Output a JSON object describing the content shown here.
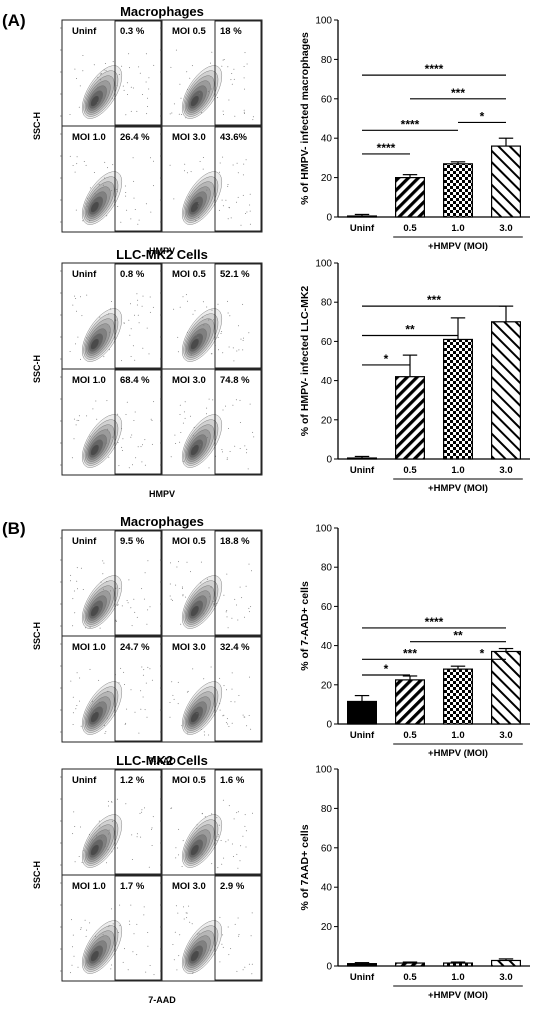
{
  "sections": [
    {
      "label": "(A)",
      "panels": [
        {
          "title": "Macrophages",
          "y_axis_label": "SSC-H",
          "x_axis_label": "HMPV",
          "quadrants": [
            {
              "condition": "Uninf",
              "percent": "0.3 %"
            },
            {
              "condition": "MOI 0.5",
              "percent": "18 %"
            },
            {
              "condition": "MOI 1.0",
              "percent": "26.4 %"
            },
            {
              "condition": "MOI 3.0",
              "percent": "43.6%"
            }
          ]
        },
        {
          "title": "LLC-MK2 Cells",
          "y_axis_label": "SSC-H",
          "x_axis_label": "HMPV",
          "quadrants": [
            {
              "condition": "Uninf",
              "percent": "0.8 %"
            },
            {
              "condition": "MOI 0.5",
              "percent": "52.1 %"
            },
            {
              "condition": "MOI 1.0",
              "percent": "68.4 %"
            },
            {
              "condition": "MOI 3.0",
              "percent": "74.8 %"
            }
          ]
        }
      ]
    },
    {
      "label": "(B)",
      "panels": [
        {
          "title": "Macrophages",
          "y_axis_label": "SSC-H",
          "x_axis_label": "7-AAD",
          "quadrants": [
            {
              "condition": "Uninf",
              "percent": "9.5 %"
            },
            {
              "condition": "MOI 0.5",
              "percent": "18.8 %"
            },
            {
              "condition": "MOI 1.0",
              "percent": "24.7 %"
            },
            {
              "condition": "MOI 3.0",
              "percent": "32.4 %"
            }
          ]
        },
        {
          "title": "LLC-MK2 Cells",
          "y_axis_label": "SSC-H",
          "x_axis_label": "7-AAD",
          "quadrants": [
            {
              "condition": "Uninf",
              "percent": "1.2 %"
            },
            {
              "condition": "MOI 0.5",
              "percent": "1.6 %"
            },
            {
              "condition": "MOI 1.0",
              "percent": "1.7 %"
            },
            {
              "condition": "MOI 3.0",
              "percent": "2.9 %"
            }
          ]
        }
      ]
    }
  ],
  "chart_data": [
    {
      "type": "bar",
      "categories": [
        "Uninf",
        "0.5",
        "1.0",
        "3.0"
      ],
      "group_label": "+HMPV (MOI)",
      "ylabel": "% of HMPV- infected macrophages",
      "ylim": [
        0,
        100
      ],
      "yticks": [
        "0",
        "20",
        "40",
        "60",
        "80",
        "100"
      ],
      "values": [
        0.5,
        20,
        27,
        36
      ],
      "errors": [
        0.8,
        1.5,
        1,
        4
      ],
      "fills": [
        "solid",
        "diagonal",
        "checker",
        "diagonal-wide"
      ],
      "significance": [
        {
          "from": 0,
          "to": 3,
          "label": "****"
        },
        {
          "from": 1,
          "to": 3,
          "label": "***"
        },
        {
          "from": 0,
          "to": 2,
          "label": "****"
        },
        {
          "from": 2,
          "to": 3,
          "label": "*"
        },
        {
          "from": 0,
          "to": 1,
          "label": "****"
        }
      ]
    },
    {
      "type": "bar",
      "categories": [
        "Uninf",
        "0.5",
        "1.0",
        "3.0"
      ],
      "group_label": "+HMPV (MOI)",
      "ylabel": "% of HMPV- infected LLC-MK2",
      "ylim": [
        0,
        100
      ],
      "yticks": [
        "0",
        "20",
        "40",
        "60",
        "80",
        "100"
      ],
      "values": [
        0.5,
        42,
        61,
        70
      ],
      "errors": [
        0.8,
        11,
        11,
        8
      ],
      "fills": [
        "solid",
        "diagonal",
        "checker",
        "diagonal-wide"
      ],
      "significance": [
        {
          "from": 0,
          "to": 3,
          "label": "***"
        },
        {
          "from": 0,
          "to": 2,
          "label": "**"
        },
        {
          "from": 0,
          "to": 1,
          "label": "*"
        }
      ]
    },
    {
      "type": "bar",
      "categories": [
        "Uninf",
        "0.5",
        "1.0",
        "3.0"
      ],
      "group_label": "+HMPV (MOI)",
      "ylabel": "% of 7-AAD+ cells",
      "ylim": [
        0,
        100
      ],
      "yticks": [
        "0",
        "20",
        "40",
        "60",
        "80",
        "100"
      ],
      "values": [
        11.5,
        22.5,
        28,
        37
      ],
      "errors": [
        3,
        2,
        1.5,
        1.5
      ],
      "fills": [
        "solid",
        "diagonal",
        "checker",
        "diagonal-wide"
      ],
      "significance": [
        {
          "from": 0,
          "to": 3,
          "label": "****"
        },
        {
          "from": 1,
          "to": 3,
          "label": "**"
        },
        {
          "from": 0,
          "to": 2,
          "label": "***"
        },
        {
          "from": 2,
          "to": 3,
          "label": "*"
        },
        {
          "from": 0,
          "to": 1,
          "label": "*"
        }
      ]
    },
    {
      "type": "bar",
      "categories": [
        "Uninf",
        "0.5",
        "1.0",
        "3.0"
      ],
      "group_label": "+HMPV (MOI)",
      "ylabel": "% of 7AAD+ cells",
      "ylim": [
        0,
        100
      ],
      "yticks": [
        "0",
        "20",
        "40",
        "60",
        "80",
        "100"
      ],
      "values": [
        1.2,
        1.5,
        1.5,
        2.8
      ],
      "errors": [
        0.5,
        0.5,
        0.5,
        0.8
      ],
      "fills": [
        "solid",
        "diagonal",
        "checker",
        "diagonal-wide"
      ],
      "significance": []
    }
  ]
}
